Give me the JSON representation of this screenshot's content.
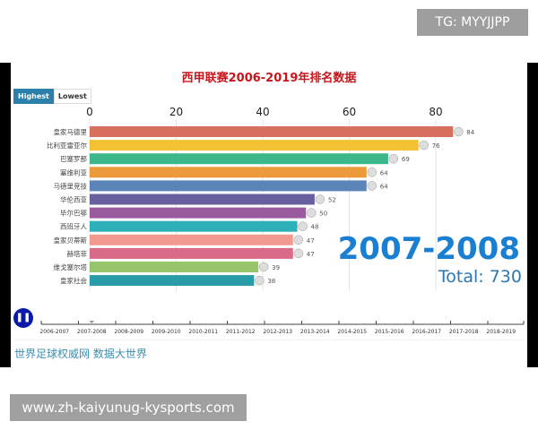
{
  "watermark": "TG: MYYJJPP",
  "url": "www.zh-kaiyunug-kysports.com",
  "buttons": [
    "Highest",
    "Lowest"
  ],
  "year_label": "2007-2008",
  "total_label": "Total: 730",
  "source": "世界足球权威网 数据大世界",
  "timeline": [
    "2006-2007",
    "2007-2008",
    "2008-2009",
    "2009-2010",
    "2010-2011",
    "2011-2012",
    "2012-2013",
    "2013-2014",
    "2014-2015",
    "2015-2016",
    "2016-2017",
    "2017-2018",
    "2018-2019"
  ],
  "timeline_current": "2007-2008",
  "chart_data": {
    "type": "bar",
    "orientation": "horizontal",
    "title": "西甲联赛2006-2019年排名数据",
    "categories": [
      "皇家马德里",
      "比利亚雷亚尔",
      "巴塞罗那",
      "塞维利亚",
      "马德里竞技",
      "华伦西亚",
      "毕尔巴鄂",
      "西班牙人",
      "皇家贝蒂斯",
      "赫塔菲",
      "维戈塞尔塔",
      "皇家社会"
    ],
    "values": [
      84,
      76,
      69,
      64,
      64,
      52,
      50,
      48,
      47,
      47,
      39,
      38
    ],
    "colors": [
      "#d9705f",
      "#f2c232",
      "#3cb88a",
      "#ec9a3a",
      "#5b84b8",
      "#675f9e",
      "#9a5a9e",
      "#2db0b8",
      "#f39a90",
      "#d96a88",
      "#98c46c",
      "#2a9ba8"
    ],
    "xticks": [
      0,
      20,
      40,
      60,
      80
    ],
    "xlim": [
      0,
      90
    ],
    "grid": true
  }
}
